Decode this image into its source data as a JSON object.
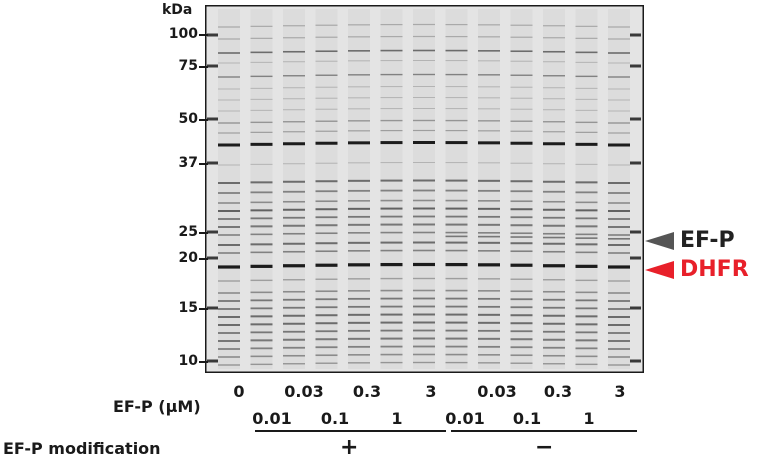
{
  "marker_unit": "kDa",
  "markers": [
    "100",
    "75",
    "50",
    "37",
    "25",
    "20",
    "15",
    "10"
  ],
  "protein_labels": {
    "efp": {
      "text": "EF-P",
      "color": "#222222",
      "arrow_color": "#555555"
    },
    "dhfr": {
      "text": "DHFR",
      "color": "#e8202a",
      "arrow_color": "#e8202a"
    }
  },
  "conditions": {
    "concentration_label": "EF-P (μM)",
    "modification_label": "EF-P modification",
    "top_row": [
      "0",
      "0.03",
      "0.3",
      "3",
      "0.03",
      "0.3",
      "3"
    ],
    "bottom_row": [
      "0.01",
      "0.1",
      "1",
      "0.01",
      "0.1",
      "1"
    ],
    "modification_groups": [
      "+",
      "−"
    ]
  }
}
